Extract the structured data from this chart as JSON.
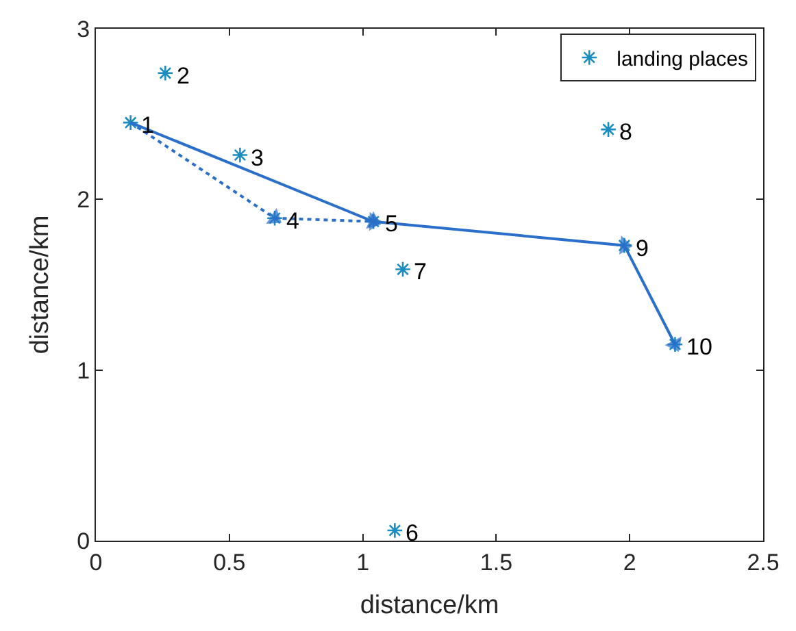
{
  "chart_data": {
    "type": "scatter",
    "xlabel": "distance/km",
    "ylabel": "distance/km",
    "xlim": [
      0,
      2.5
    ],
    "xticks": [
      0,
      0.5,
      1,
      1.5,
      2,
      2.5
    ],
    "ylim": [
      0,
      3
    ],
    "yticks": [
      0,
      1,
      2,
      3
    ],
    "legend": "top right",
    "series": [
      {
        "name": "landing places",
        "marker": "cross",
        "color": "#1a8cbf",
        "x": [
          0.13,
          0.26,
          0.54,
          0.67,
          1.04,
          1.12,
          1.15,
          1.92,
          1.98,
          2.17
        ],
        "values": [
          2.45,
          2.74,
          2.26,
          1.89,
          1.87,
          0.06,
          1.59,
          2.41,
          1.73,
          1.15
        ]
      },
      {
        "type": "line",
        "line_style": "solid",
        "marker": "triangle",
        "color": "#2a6fc9",
        "x": [
          0.13,
          1.04,
          1.98,
          2.17
        ],
        "values": [
          2.45,
          1.87,
          1.73,
          1.15
        ]
      },
      {
        "type": "line",
        "line_style": "dotted",
        "marker": "triangle",
        "color": "#2a6fc9",
        "x": [
          0.13,
          0.67,
          1.04
        ],
        "values": [
          2.45,
          1.89,
          1.87
        ]
      }
    ],
    "annotations": [
      {
        "text": "1",
        "x": 0.13,
        "y": 2.45
      },
      {
        "text": "2",
        "x": 0.26,
        "y": 2.74
      },
      {
        "text": "3",
        "x": 0.54,
        "y": 2.26
      },
      {
        "text": "4",
        "x": 0.67,
        "y": 1.89
      },
      {
        "text": "5",
        "x": 1.04,
        "y": 1.87
      },
      {
        "text": "6",
        "x": 1.12,
        "y": 0.06
      },
      {
        "text": "7",
        "x": 1.15,
        "y": 1.59
      },
      {
        "text": "8",
        "x": 1.92,
        "y": 2.41
      },
      {
        "text": "9",
        "x": 1.98,
        "y": 1.73
      },
      {
        "text": "10",
        "x": 2.17,
        "y": 1.15
      }
    ]
  }
}
